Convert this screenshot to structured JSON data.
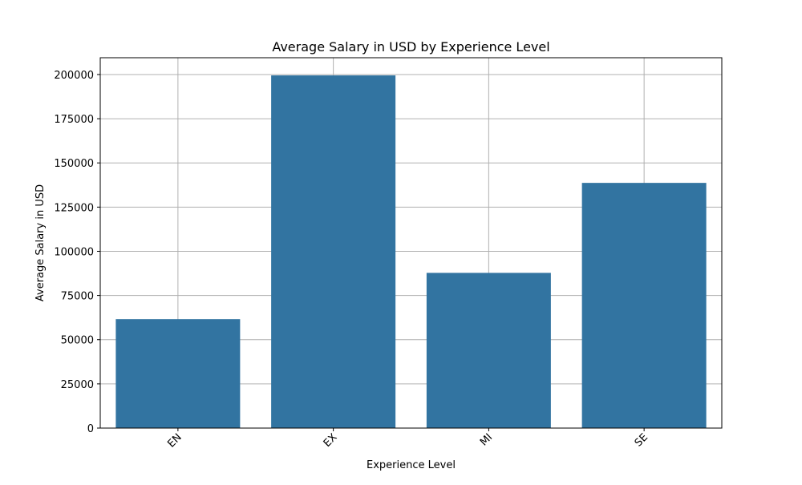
{
  "chart_data": {
    "type": "bar",
    "title": "Average Salary in USD by Experience Level",
    "xlabel": "Experience Level",
    "ylabel": "Average Salary in USD",
    "categories": [
      "EN",
      "EX",
      "MI",
      "SE"
    ],
    "values": [
      61600,
      199500,
      87800,
      138700
    ],
    "ylim": [
      0,
      209500
    ],
    "yticks": [
      0,
      25000,
      50000,
      75000,
      100000,
      125000,
      150000,
      175000,
      200000
    ],
    "ytick_labels": [
      "0",
      "25000",
      "50000",
      "75000",
      "100000",
      "125000",
      "150000",
      "175000",
      "200000"
    ],
    "grid": true,
    "bar_color": "#3274a1",
    "grid_color": "#b0b0b0",
    "xtick_rotation_deg": 45
  }
}
